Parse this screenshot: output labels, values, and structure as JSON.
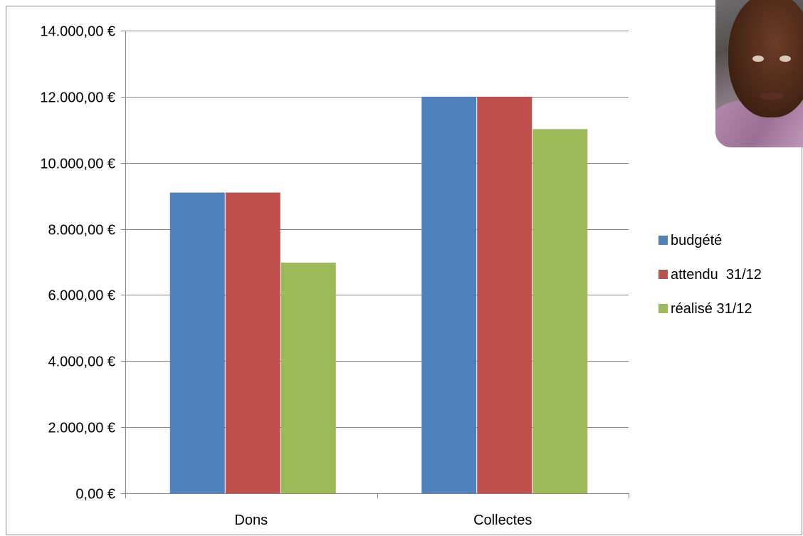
{
  "chart_data": {
    "type": "bar",
    "categories": [
      "Dons",
      "Collectes"
    ],
    "series": [
      {
        "name": "budgété",
        "values": [
          9100,
          12000
        ],
        "color": "#4f81bd"
      },
      {
        "name": "attendu  31/12",
        "values": [
          9100,
          12000
        ],
        "color": "#c0504d"
      },
      {
        "name": "réalisé 31/12",
        "values": [
          6980,
          11020
        ],
        "color": "#9bbb59"
      }
    ],
    "ylim": [
      0,
      14000
    ],
    "yticks": [
      0,
      2000,
      4000,
      6000,
      8000,
      10000,
      12000,
      14000
    ],
    "ytick_labels": [
      "0,00 €",
      "2.000,00 €",
      "4.000,00 €",
      "6.000,00 €",
      "8.000,00 €",
      "10.000,00 €",
      "12.000,00 €",
      "14.000,00 €"
    ],
    "grid": true,
    "legend_position": "right",
    "title": "",
    "xlabel": "",
    "ylabel": ""
  },
  "decorations": {
    "photo_icon": "portrait-photo"
  }
}
